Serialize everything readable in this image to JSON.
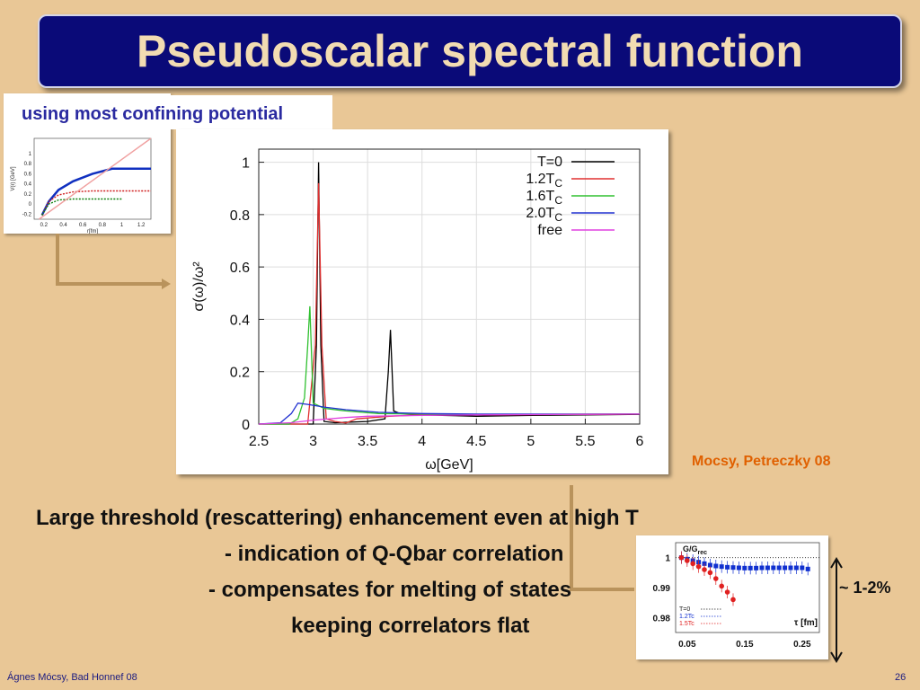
{
  "slide": {
    "title": "Pseudoscalar spectral function",
    "subtitle": "using most confining potential",
    "citation": "Mocsy, Petreczky 08",
    "body": [
      "Large threshold (rescattering) enhancement even at high T",
      "- indication of Q-Qbar correlation",
      "- compensates for melting of states",
      "keeping correlators flat"
    ],
    "range_label": "~ 1-2%",
    "footer_author": "Ágnes Mócsy, Bad Honnef 08",
    "page_number": "26"
  },
  "chart_data": [
    {
      "type": "line",
      "xlabel": "ω[GeV]",
      "ylabel": "σ(ω)/ω²",
      "xlim": [
        2.5,
        6
      ],
      "ylim": [
        0,
        1.05
      ],
      "x_ticks": [
        "2.5",
        "3",
        "3.5",
        "4",
        "4.5",
        "5",
        "5.5",
        "6"
      ],
      "y_ticks": [
        "0",
        "0.2",
        "0.4",
        "0.6",
        "0.8",
        "1"
      ],
      "grid": true,
      "legend_position": "top-right",
      "series": [
        {
          "name": "T=0",
          "legend_main": "T=0",
          "legend_sub": "",
          "color": "#000000",
          "x": [
            2.5,
            3.0,
            3.03,
            3.05,
            3.07,
            3.1,
            3.2,
            3.5,
            3.66,
            3.69,
            3.71,
            3.74,
            3.8,
            4.0,
            4.5,
            5.0,
            5.5,
            6.0
          ],
          "y": [
            0,
            0,
            0.3,
            1.0,
            0.3,
            0.01,
            0.005,
            0.01,
            0.02,
            0.2,
            0.36,
            0.05,
            0.04,
            0.035,
            0.03,
            0.033,
            0.035,
            0.037
          ]
        },
        {
          "name": "1.2Tc",
          "legend_main": "1.2T",
          "legend_sub": "C",
          "color": "#e03030",
          "x": [
            2.5,
            2.95,
            3.02,
            3.05,
            3.08,
            3.12,
            3.2,
            3.3,
            3.4,
            3.7,
            4.0,
            4.5,
            5.0,
            5.5,
            6.0
          ],
          "y": [
            0,
            0,
            0.3,
            0.92,
            0.3,
            0.02,
            0.01,
            0.004,
            0.02,
            0.03,
            0.035,
            0.035,
            0.036,
            0.037,
            0.038
          ]
        },
        {
          "name": "1.6Tc",
          "legend_main": "1.6T",
          "legend_sub": "C",
          "color": "#30c030",
          "x": [
            2.5,
            2.78,
            2.86,
            2.92,
            2.95,
            2.97,
            3.0,
            3.1,
            3.3,
            3.6,
            4.0,
            4.5,
            5.0,
            5.5,
            6.0
          ],
          "y": [
            0,
            0,
            0.02,
            0.1,
            0.3,
            0.45,
            0.08,
            0.06,
            0.05,
            0.04,
            0.038,
            0.037,
            0.037,
            0.038,
            0.038
          ]
        },
        {
          "name": "2.0Tc",
          "legend_main": "2.0T",
          "legend_sub": "C",
          "color": "#2030d0",
          "x": [
            2.5,
            2.7,
            2.8,
            2.86,
            2.95,
            3.1,
            3.3,
            3.6,
            4.0,
            4.5,
            5.0,
            5.5,
            6.0
          ],
          "y": [
            0,
            0.005,
            0.04,
            0.08,
            0.075,
            0.065,
            0.055,
            0.045,
            0.04,
            0.038,
            0.038,
            0.038,
            0.038
          ]
        },
        {
          "name": "free",
          "legend_main": "free",
          "legend_sub": "",
          "color": "#e040e0",
          "x": [
            2.5,
            2.8,
            3.0,
            3.3,
            3.5,
            4.0,
            4.5,
            5.0,
            5.5,
            6.0
          ],
          "y": [
            0,
            0.005,
            0.015,
            0.025,
            0.03,
            0.033,
            0.035,
            0.036,
            0.037,
            0.038
          ]
        }
      ]
    },
    {
      "type": "line",
      "xlabel": "r[fm]",
      "ylabel": "V(r) [GeV]",
      "xlim": [
        0.1,
        1.3
      ],
      "ylim": [
        -0.3,
        1.3
      ],
      "x_ticks": [
        "0.2",
        "0.4",
        "0.6",
        "0.8",
        "1",
        "1.2"
      ],
      "y_ticks": [
        "-0.2",
        "0",
        "0.2",
        "0.4",
        "0.6",
        "0.8",
        "1"
      ],
      "legend_position": "top-left",
      "series": [
        {
          "name": "blue",
          "color": "#1030c0",
          "x": [
            0.18,
            0.25,
            0.35,
            0.5,
            0.7,
            0.9,
            1.1,
            1.3
          ],
          "y": [
            -0.22,
            0.05,
            0.28,
            0.45,
            0.6,
            0.7,
            0.7,
            0.7
          ]
        },
        {
          "name": "red",
          "color": "#d02020",
          "x": [
            0.18,
            0.25,
            0.35,
            0.5,
            0.7,
            0.9,
            1.1,
            1.3
          ],
          "y": [
            -0.22,
            0.05,
            0.18,
            0.24,
            0.26,
            0.26,
            0.26,
            0.26
          ]
        },
        {
          "name": "green",
          "color": "#108010",
          "x": [
            0.18,
            0.25,
            0.35,
            0.5,
            0.7,
            0.9,
            1.0
          ],
          "y": [
            -0.22,
            0.0,
            0.08,
            0.1,
            0.1,
            0.1,
            0.1
          ]
        },
        {
          "name": "pink",
          "color": "#f0a0a0",
          "x": [
            0.15,
            1.3
          ],
          "y": [
            -0.3,
            1.3
          ]
        }
      ]
    },
    {
      "type": "scatter",
      "title": "G/G",
      "title_sub": "rec",
      "xlabel": "τ [fm]",
      "xlim": [
        0.03,
        0.28
      ],
      "ylim": [
        0.975,
        1.005
      ],
      "x_ticks": [
        "0.05",
        "0.15",
        "0.25"
      ],
      "y_ticks": [
        "0.98",
        "0.99",
        "1"
      ],
      "legend": [
        "T=0",
        "1.2Tc",
        "1.5Tc"
      ],
      "series": [
        {
          "name": "1.2Tc",
          "color": "#1030d0",
          "x": [
            0.04,
            0.05,
            0.06,
            0.07,
            0.08,
            0.09,
            0.1,
            0.11,
            0.12,
            0.13,
            0.14,
            0.15,
            0.16,
            0.17,
            0.18,
            0.19,
            0.2,
            0.21,
            0.22,
            0.23,
            0.24,
            0.25,
            0.26
          ],
          "y": [
            1.0,
            0.9995,
            0.999,
            0.9985,
            0.998,
            0.9975,
            0.9972,
            0.997,
            0.9968,
            0.9967,
            0.9966,
            0.9965,
            0.9965,
            0.9965,
            0.9966,
            0.9966,
            0.9966,
            0.9966,
            0.9966,
            0.9966,
            0.9966,
            0.9966,
            0.9962
          ]
        },
        {
          "name": "1.5Tc",
          "color": "#e02020",
          "x": [
            0.04,
            0.05,
            0.06,
            0.07,
            0.08,
            0.09,
            0.1,
            0.11,
            0.12,
            0.13
          ],
          "y": [
            1.0,
            0.999,
            0.998,
            0.997,
            0.996,
            0.995,
            0.993,
            0.9905,
            0.9885,
            0.986
          ]
        }
      ]
    }
  ]
}
